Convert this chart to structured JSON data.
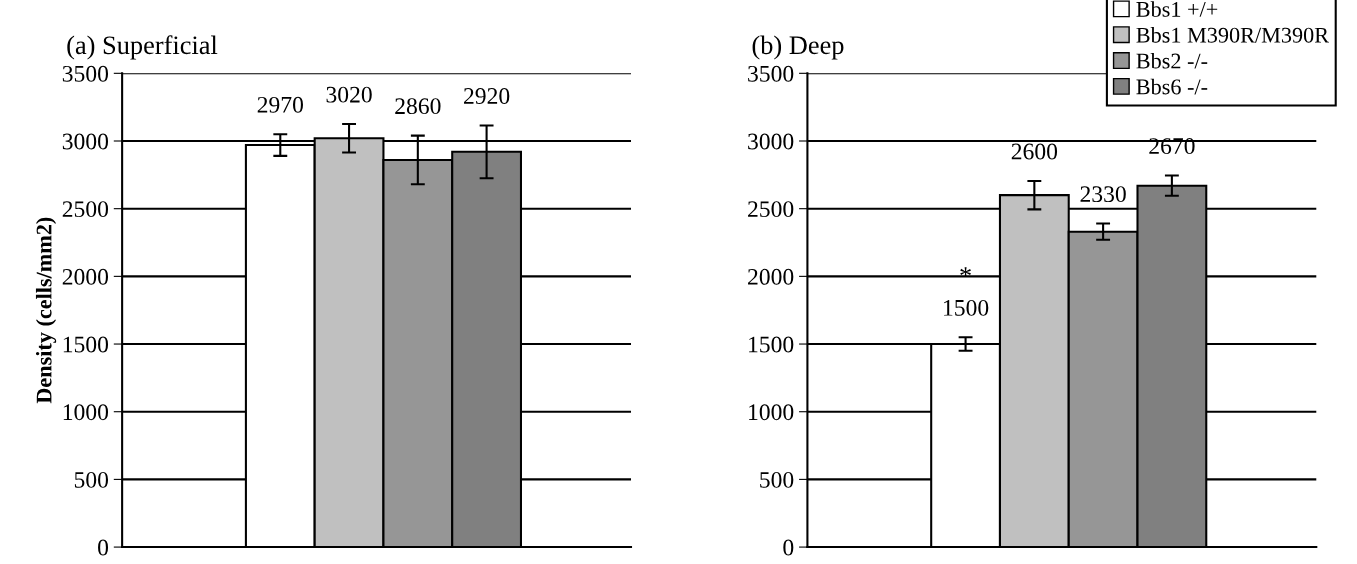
{
  "chart_data": [
    {
      "type": "bar",
      "title": "(a) Superficial",
      "ylabel": "Density (cells/mm2)",
      "categories": [
        null
      ],
      "ylim": [
        0,
        3500
      ],
      "yticks": [
        0,
        500,
        1000,
        1500,
        2000,
        2500,
        3000,
        3500
      ],
      "grid": "y",
      "data_labels": true,
      "series": [
        {
          "color": "#ffffff",
          "values": [
            2970
          ],
          "errors": [
            80
          ]
        },
        {
          "color": "#c0c0c0",
          "values": [
            3020
          ],
          "errors": [
            105
          ]
        },
        {
          "color": "#969696",
          "values": [
            2860
          ],
          "errors": [
            180
          ]
        },
        {
          "color": "#808080",
          "values": [
            2920
          ],
          "errors": [
            195
          ]
        }
      ]
    },
    {
      "type": "bar",
      "title": "(b) Deep",
      "categories": [
        null
      ],
      "ylim": [
        0,
        3500
      ],
      "yticks": [
        0,
        500,
        1000,
        1500,
        2000,
        2500,
        3000,
        3500
      ],
      "grid": "y",
      "data_labels": true,
      "legend": "top right",
      "annotations": [
        "*"
      ],
      "series": [
        {
          "name": "Bbs1 +/+",
          "color": "#ffffff",
          "values": [
            1500
          ],
          "errors": [
            50
          ]
        },
        {
          "name": "Bbs1 M390R/M390R",
          "color": "#c0c0c0",
          "values": [
            2600
          ],
          "errors": [
            105
          ]
        },
        {
          "name": "Bbs2 -/-",
          "color": "#969696",
          "values": [
            2330
          ],
          "errors": [
            60
          ]
        },
        {
          "name": "Bbs6 -/-",
          "color": "#808080",
          "values": [
            2670
          ],
          "errors": [
            75
          ]
        }
      ]
    }
  ]
}
